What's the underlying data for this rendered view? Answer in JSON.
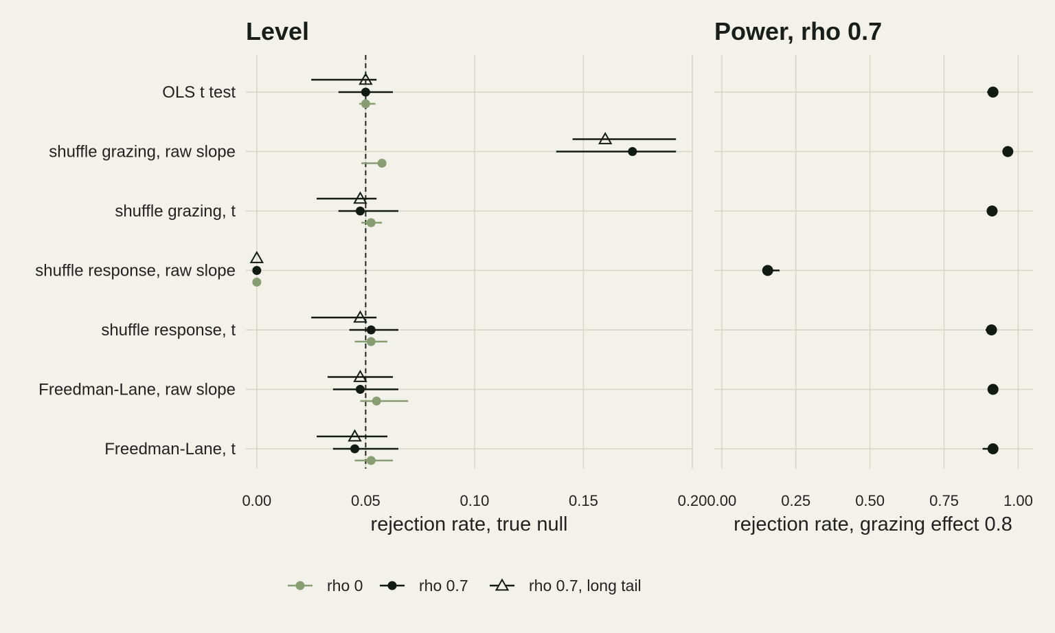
{
  "colors": {
    "background": "#f2f1ea",
    "grid": "#d6d6c6",
    "rho0": "#879e73",
    "rho07": "#121a14",
    "ref_line": "#222222"
  },
  "chart_data": [
    {
      "type": "scatter",
      "subtype": "dot-whisker",
      "title": "Level",
      "xlabel": "rejection rate, true null",
      "ylabel": "",
      "xlim": [
        -0.005,
        0.2
      ],
      "xticks": [
        0.0,
        0.05,
        0.1,
        0.15,
        0.2
      ],
      "xtick_labels": [
        "0.00",
        "0.05",
        "0.10",
        "0.15",
        "0.20"
      ],
      "reference_line": 0.05,
      "grid": true,
      "categories": [
        "OLS t test",
        "shuffle grazing, raw slope",
        "shuffle grazing, t",
        "shuffle response, raw slope",
        "shuffle response, t",
        "Freedman-Lane, raw slope",
        "Freedman-Lane, t"
      ],
      "series": [
        {
          "name": "rho 0",
          "marker": "circle",
          "color": "#879e73",
          "values": [
            0.05,
            0.0575,
            0.0525,
            0.0,
            0.0525,
            0.055,
            0.0525
          ],
          "ci_low": [
            0.047,
            0.048,
            0.048,
            null,
            0.045,
            0.0475,
            0.045
          ],
          "ci_high": [
            0.0545,
            0.0575,
            0.0575,
            null,
            0.06,
            0.0695,
            0.0625
          ]
        },
        {
          "name": "rho 0.7",
          "marker": "circle",
          "color": "#121a14",
          "values": [
            0.05,
            0.1725,
            0.0475,
            0.0,
            0.0525,
            0.0475,
            0.045
          ],
          "ci_low": [
            0.0375,
            0.1375,
            0.0375,
            null,
            0.0425,
            0.035,
            0.035
          ],
          "ci_high": [
            0.0625,
            0.1925,
            0.065,
            null,
            0.065,
            0.065,
            0.065
          ]
        },
        {
          "name": "rho 0.7, long tail",
          "marker": "triangle",
          "color": "#121a14",
          "values": [
            0.05,
            0.16,
            0.0475,
            0.0,
            0.0475,
            0.0475,
            0.045
          ],
          "ci_low": [
            0.025,
            0.145,
            0.0275,
            null,
            0.025,
            0.0325,
            0.0275
          ],
          "ci_high": [
            0.055,
            0.1925,
            0.055,
            null,
            0.055,
            0.0625,
            0.06
          ]
        }
      ]
    },
    {
      "type": "scatter",
      "subtype": "dot-whisker",
      "title": "Power, rho 0.7",
      "xlabel": "rejection rate, grazing effect 0.8",
      "ylabel": "",
      "xlim": [
        -0.025,
        1.05
      ],
      "xticks": [
        0.0,
        0.25,
        0.5,
        0.75,
        1.0
      ],
      "xtick_labels": [
        "0.00",
        "0.25",
        "0.50",
        "0.75",
        "1.00"
      ],
      "grid": true,
      "categories": [
        "OLS t test",
        "shuffle grazing, raw slope",
        "shuffle grazing, t",
        "shuffle response, raw slope",
        "shuffle response, t",
        "Freedman-Lane, raw slope",
        "Freedman-Lane, t"
      ],
      "series": [
        {
          "name": "rho 0.7",
          "marker": "circle",
          "color": "#121a14",
          "values": [
            0.915,
            0.965,
            0.912,
            0.155,
            0.91,
            0.915,
            0.915
          ],
          "ci_low": [
            0.895,
            0.955,
            0.905,
            0.145,
            0.89,
            0.9,
            0.88
          ],
          "ci_high": [
            0.925,
            0.97,
            0.915,
            0.195,
            0.915,
            0.92,
            0.92
          ]
        }
      ]
    }
  ],
  "legend": {
    "position": "bottom",
    "items": [
      {
        "label": "rho 0",
        "marker": "circle",
        "color": "#879e73"
      },
      {
        "label": "rho 0.7",
        "marker": "circle",
        "color": "#121a14"
      },
      {
        "label": "rho 0.7, long tail",
        "marker": "triangle",
        "color": "#121a14"
      }
    ]
  }
}
